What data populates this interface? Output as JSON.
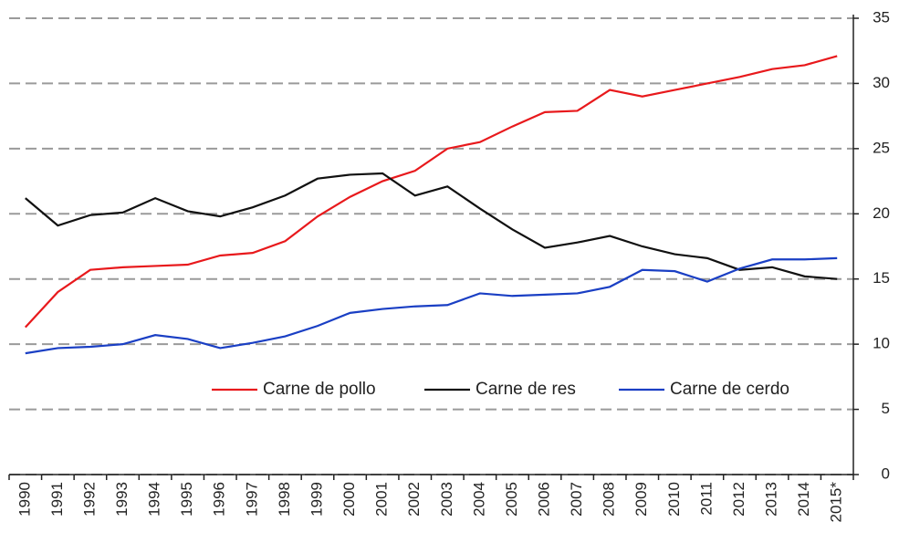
{
  "chart_data": {
    "type": "line",
    "categories": [
      "1990",
      "1991",
      "1992",
      "1993",
      "1994",
      "1995",
      "1996",
      "1997",
      "1998",
      "1999",
      "2000",
      "2001",
      "2002",
      "2003",
      "2004",
      "2005",
      "2006",
      "2007",
      "2008",
      "2009",
      "2010",
      "2011",
      "2012",
      "2013",
      "2014",
      "2015*"
    ],
    "series": [
      {
        "name": "Carne de pollo",
        "color": "#e8191c",
        "values": [
          11.3,
          14.0,
          15.7,
          15.9,
          16.0,
          16.1,
          16.8,
          17.0,
          17.9,
          19.8,
          21.3,
          22.5,
          23.3,
          25.0,
          25.5,
          26.7,
          27.8,
          27.9,
          29.5,
          29.0,
          29.5,
          30.0,
          30.5,
          31.1,
          31.4,
          32.1
        ]
      },
      {
        "name": "Carne de res",
        "color": "#111111",
        "values": [
          21.2,
          19.1,
          19.9,
          20.1,
          21.2,
          20.2,
          19.8,
          20.5,
          21.4,
          22.7,
          23.0,
          23.1,
          21.4,
          22.1,
          20.4,
          18.8,
          17.4,
          17.8,
          18.3,
          17.5,
          16.9,
          16.6,
          15.7,
          15.9,
          15.2,
          15.0
        ]
      },
      {
        "name": "Carne de cerdo",
        "color": "#1a3fc4",
        "values": [
          9.3,
          9.7,
          9.8,
          10.0,
          10.7,
          10.4,
          9.7,
          10.1,
          10.6,
          11.4,
          12.4,
          12.7,
          12.9,
          13.0,
          13.9,
          13.7,
          13.8,
          13.9,
          14.4,
          15.7,
          15.6,
          14.8,
          15.8,
          16.5,
          16.5,
          16.6
        ]
      }
    ],
    "ylim": [
      0,
      35
    ],
    "yticks": [
      0,
      5,
      10,
      15,
      20,
      25,
      30,
      35
    ],
    "grid": true,
    "y_axis_side": "right"
  }
}
